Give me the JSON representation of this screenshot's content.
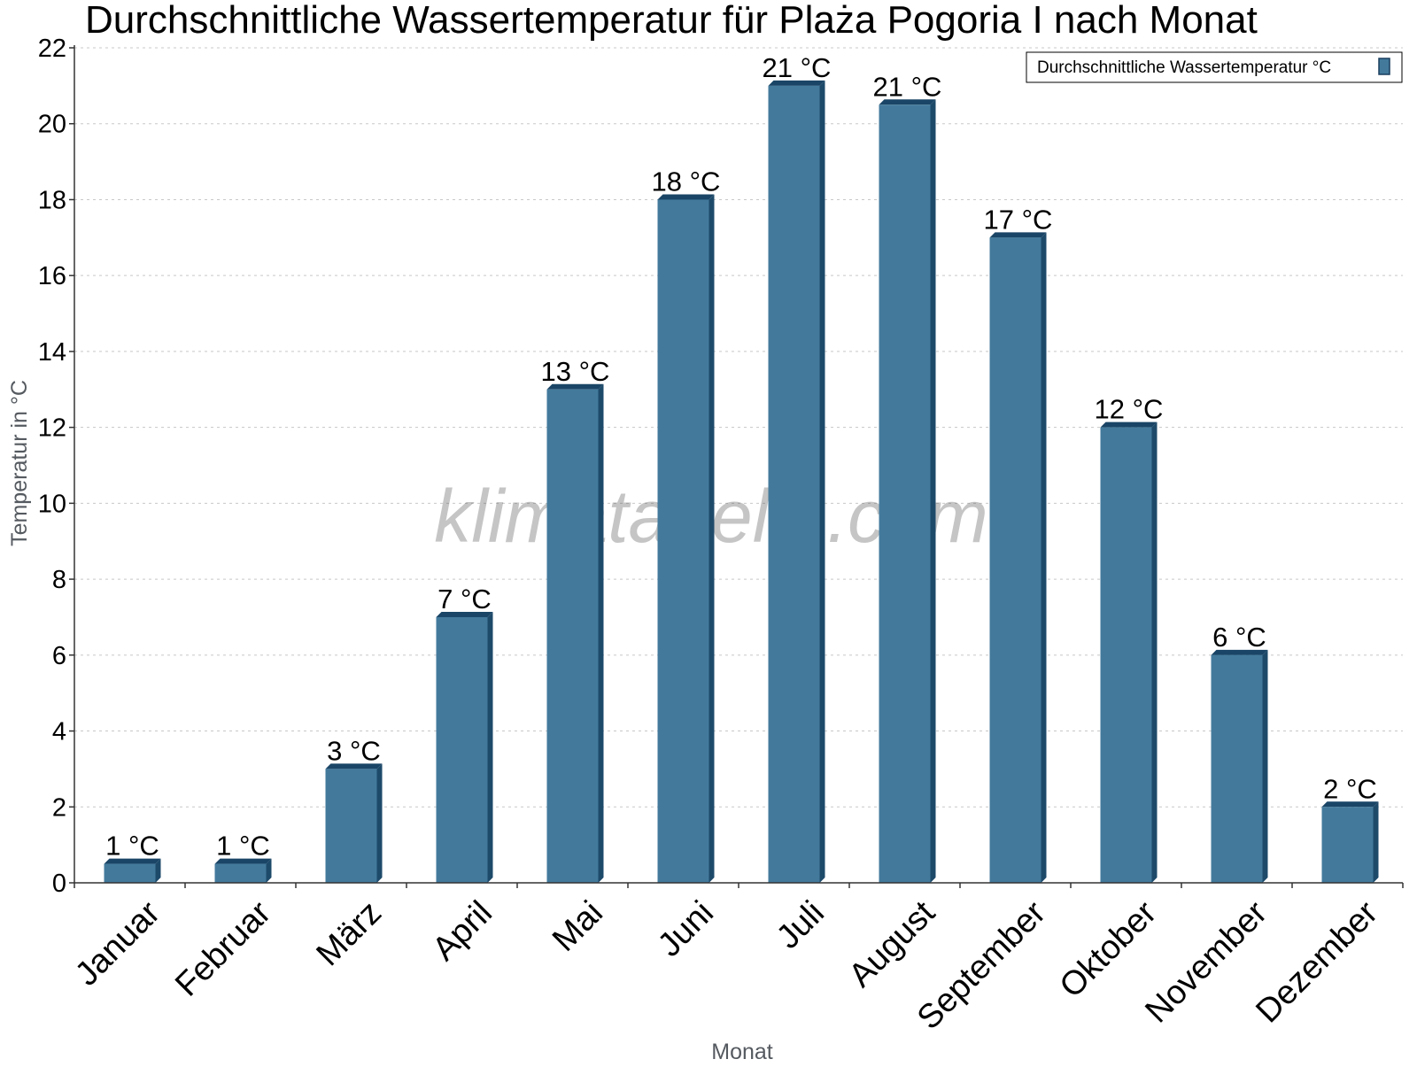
{
  "chart_data": {
    "type": "bar",
    "title": "Durchschnittliche Wassertemperatur für Plaża Pogoria I nach Monat",
    "xlabel": "Monat",
    "ylabel": "Temperatur in °C",
    "categories": [
      "Januar",
      "Februar",
      "März",
      "April",
      "Mai",
      "Juni",
      "Juli",
      "August",
      "September",
      "Oktober",
      "November",
      "Dezember"
    ],
    "series": [
      {
        "name": "Durchschnittliche Wassertemperatur °C",
        "values": [
          0.5,
          0.5,
          3,
          7,
          13,
          18,
          21,
          20.5,
          17,
          12,
          6,
          2
        ],
        "labels": [
          "1 °C",
          "1 °C",
          "3 °C",
          "7 °C",
          "13 °C",
          "18 °C",
          "21 °C",
          "21 °C",
          "17 °C",
          "12 °C",
          "6 °C",
          "2 °C"
        ],
        "color": "#437a9c"
      }
    ],
    "ylim": [
      0,
      22
    ],
    "yticks": [
      0,
      2,
      4,
      6,
      8,
      10,
      12,
      14,
      16,
      18,
      20,
      22
    ],
    "grid": true,
    "legend_position": "top-right"
  },
  "watermark": "klimatabelle.com",
  "colors": {
    "bar_front": "#437a9c",
    "bar_side": "#1e4a6a",
    "bar_top": "#1a4566",
    "grid": "#c8c8c8",
    "axis": "#333333"
  }
}
